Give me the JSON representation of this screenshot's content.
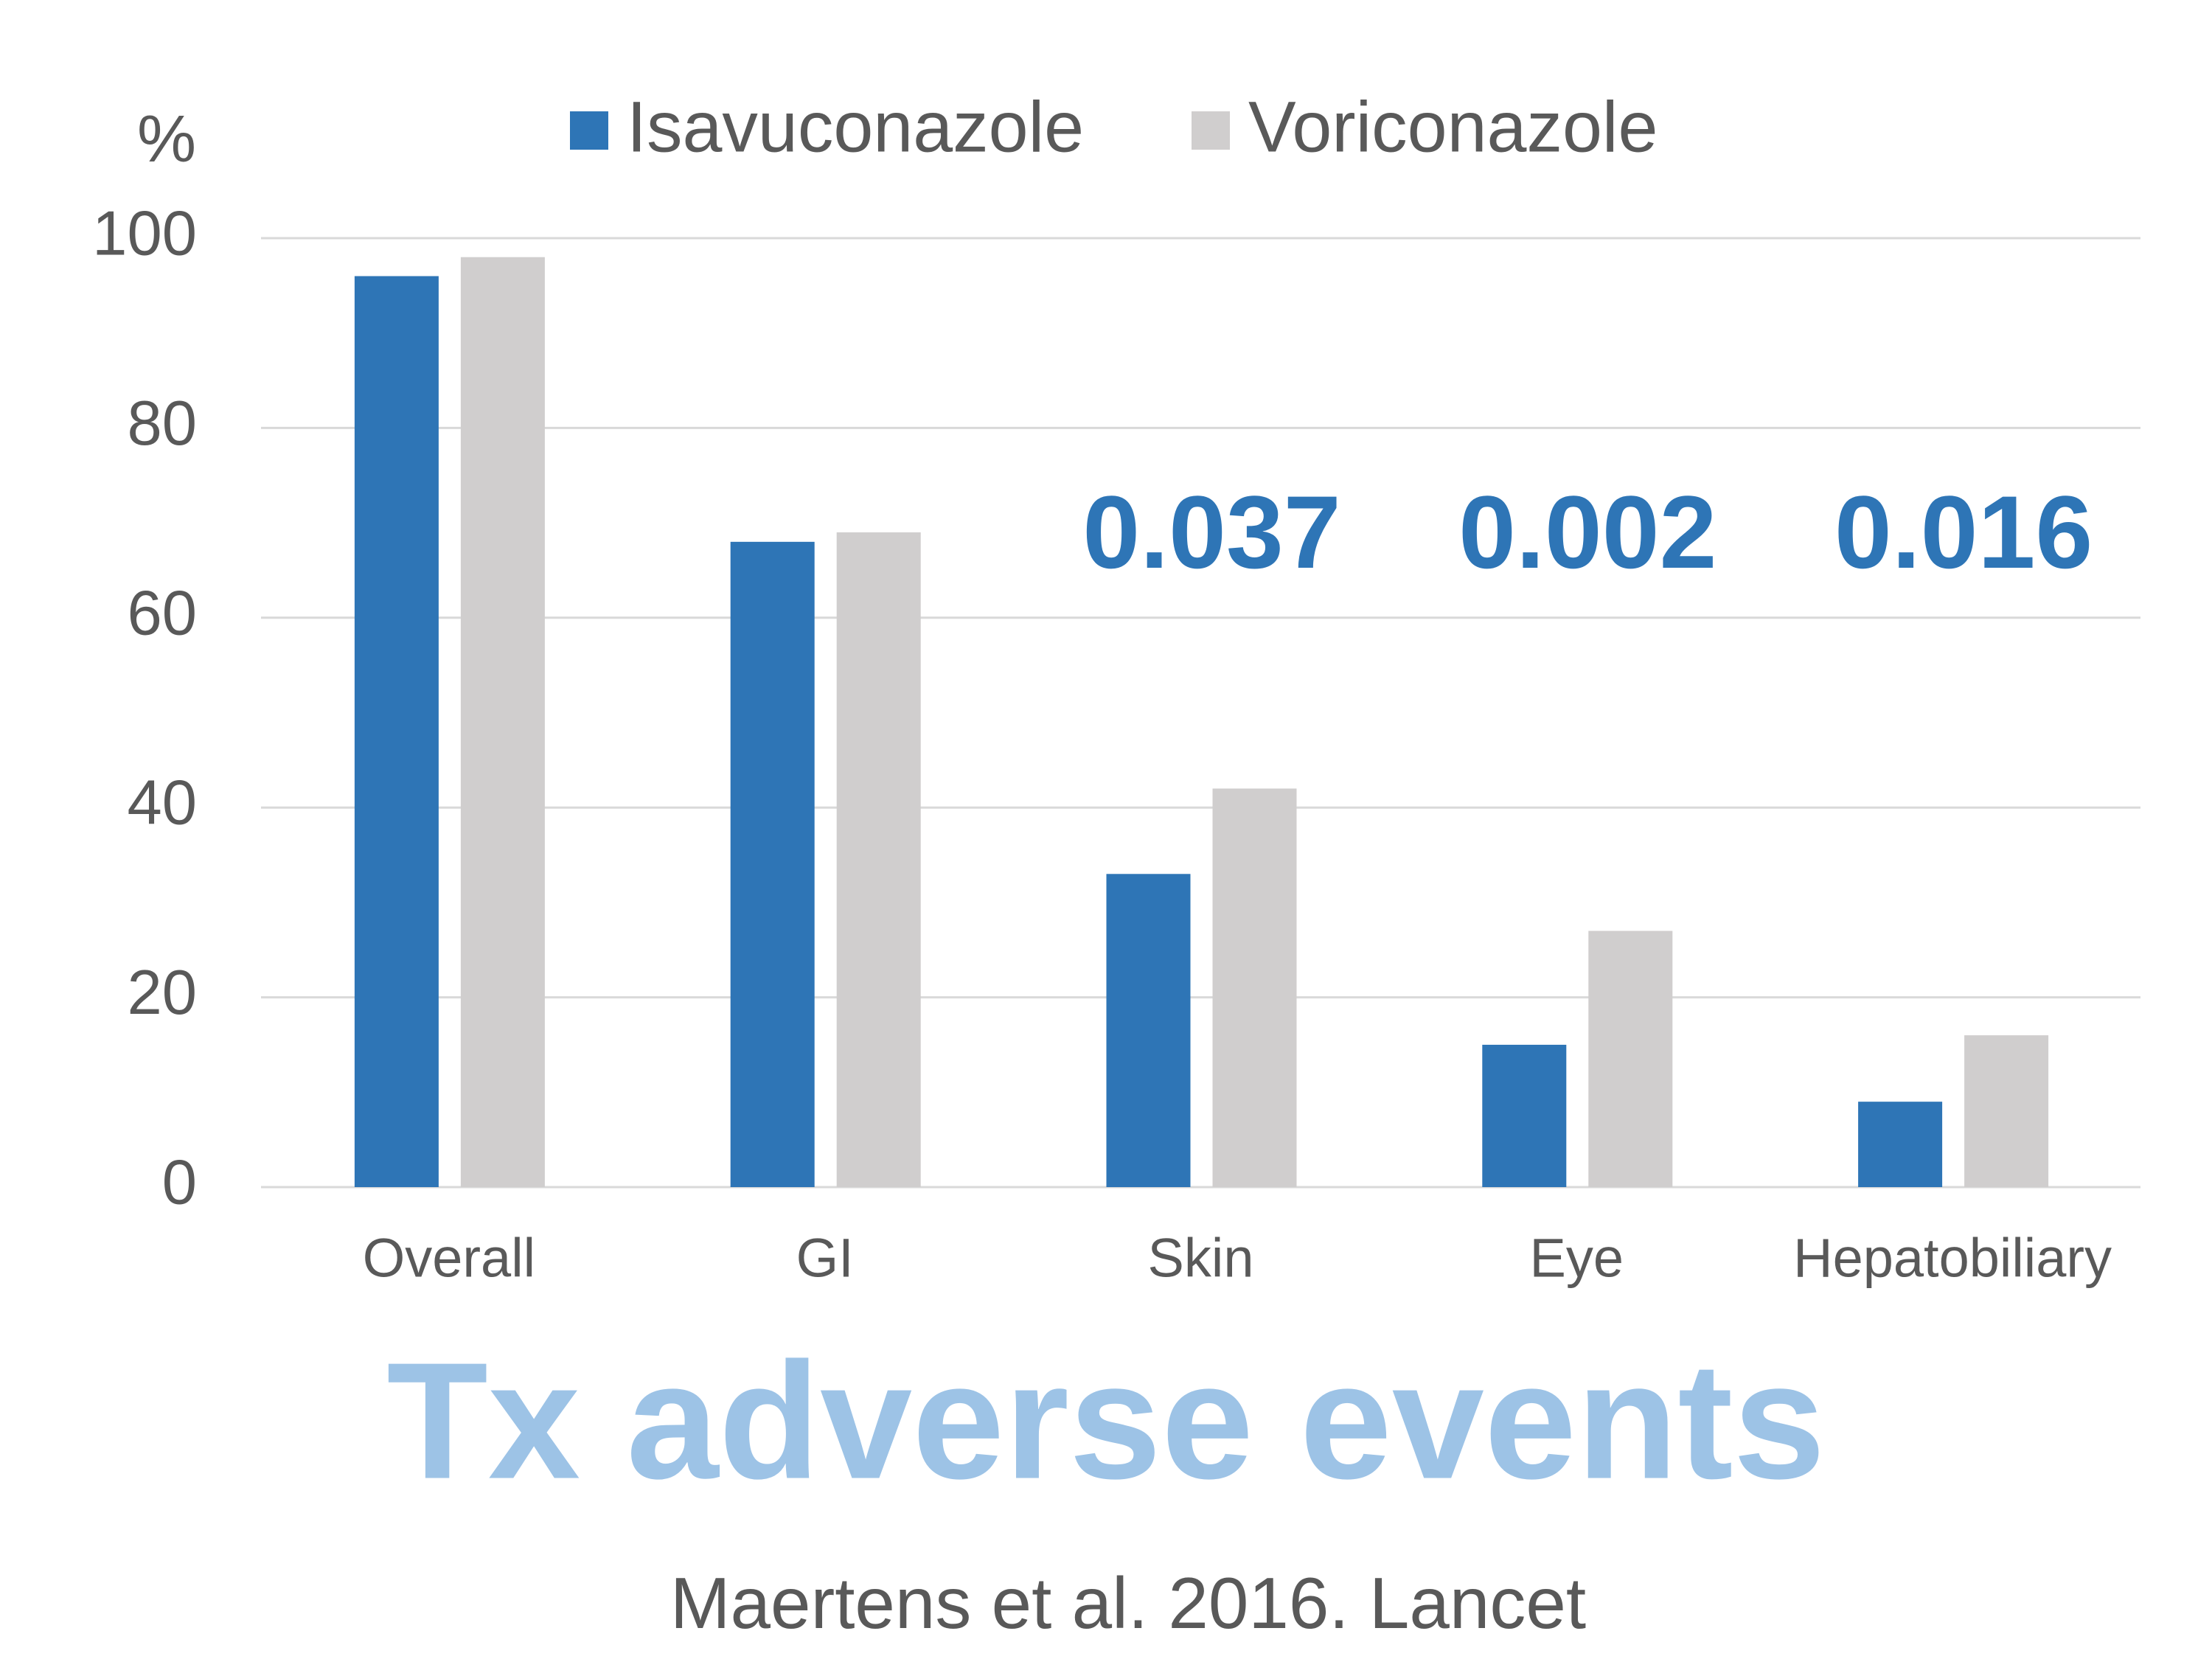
{
  "chart_data": {
    "type": "bar",
    "title": "Tx adverse events",
    "source": "Maertens et al. 2016. Lancet",
    "y_axis_label": "%",
    "categories": [
      "Overall",
      "GI",
      "Skin",
      "Eye",
      "Hepatobiliary"
    ],
    "series": [
      {
        "name": "Isavuconazole",
        "color": "#2e75b6",
        "values": [
          96,
          68,
          33,
          15,
          9
        ]
      },
      {
        "name": "Voriconazole",
        "color": "#d0cece",
        "values": [
          98,
          69,
          42,
          27,
          16
        ]
      }
    ],
    "annotations": [
      {
        "category": "Skin",
        "text": "0.037"
      },
      {
        "category": "Eye",
        "text": "0.002"
      },
      {
        "category": "Hepatobiliary",
        "text": "0.016"
      }
    ],
    "ylim": [
      0,
      100
    ],
    "yticks": [
      0,
      20,
      40,
      60,
      80,
      100
    ],
    "grid": true,
    "legend": "top"
  }
}
